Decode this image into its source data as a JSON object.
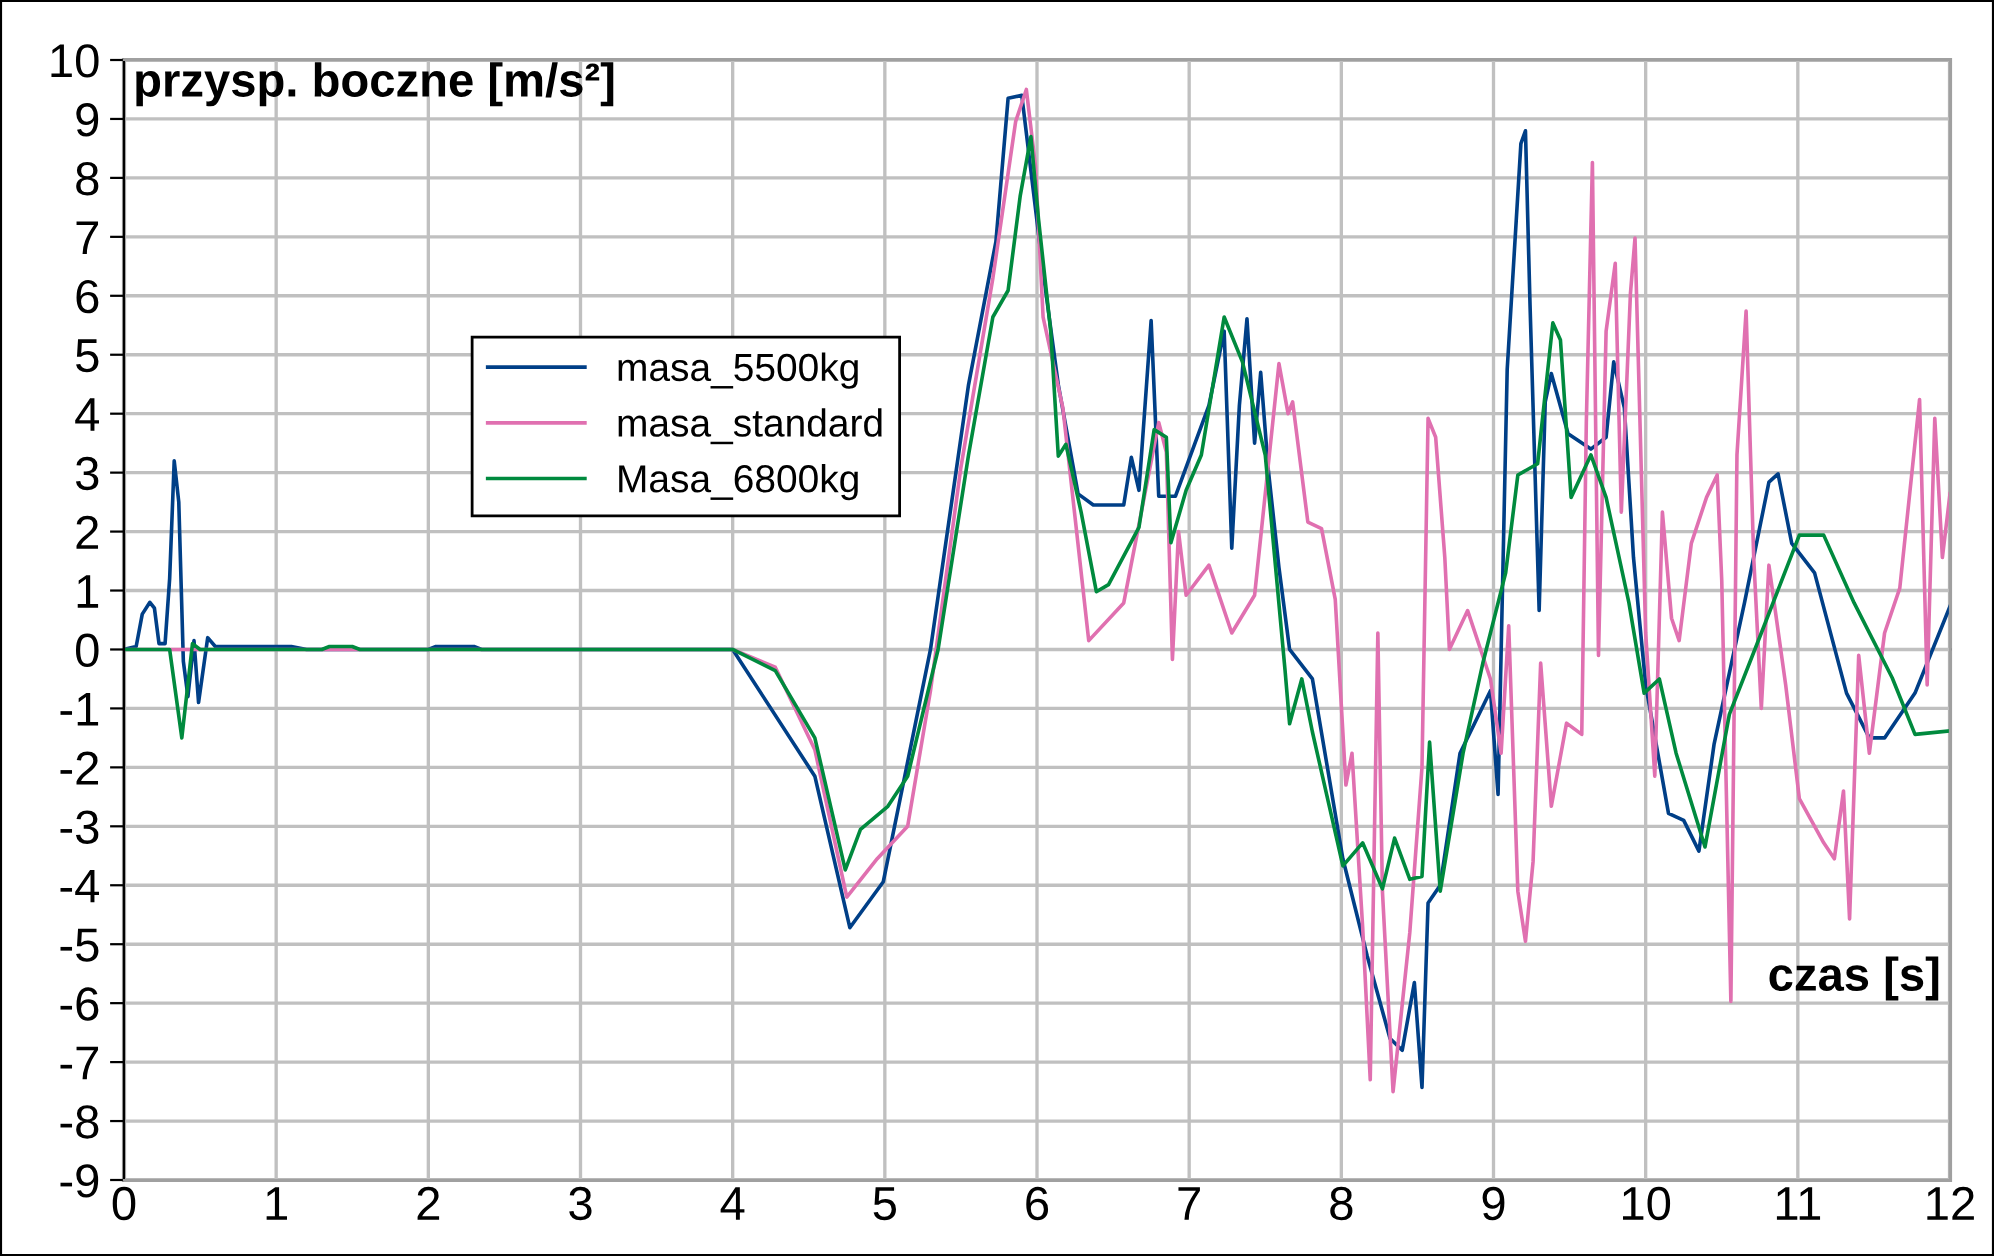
{
  "chart_data": {
    "type": "line",
    "xlabel": "czas [s]",
    "ylabel": "przysp. boczne [m/s²]",
    "xlim": [
      0,
      12
    ],
    "xticks": [
      0,
      1,
      2,
      3,
      4,
      5,
      6,
      7,
      8,
      9,
      10,
      11,
      12
    ],
    "ylim": [
      -9,
      10
    ],
    "yticks": [
      -9,
      -8,
      -7,
      -6,
      -5,
      -4,
      -3,
      -2,
      -1,
      0,
      1,
      2,
      3,
      4,
      5,
      6,
      7,
      8,
      9,
      10
    ],
    "grid": true,
    "legend": "top left",
    "marker": "none",
    "line_style": "solid",
    "series": [
      {
        "name": "masa_5500kg",
        "color": "#003f87",
        "x": [
          0,
          0.08,
          0.12,
          0.17,
          0.2,
          0.23,
          0.27,
          0.3,
          0.33,
          0.36,
          0.39,
          0.42,
          0.46,
          0.49,
          0.55,
          0.6,
          1.1,
          1.2,
          2.0,
          2.05,
          2.3,
          2.35,
          4.0,
          4.54,
          4.77,
          4.99,
          5.3,
          5.55,
          5.73,
          5.81,
          5.9,
          6.04,
          6.14,
          6.27,
          6.37,
          6.57,
          6.62,
          6.67,
          6.75,
          6.8,
          6.91,
          7.13,
          7.19,
          7.23,
          7.28,
          7.33,
          7.38,
          7.43,
          7.47,
          7.52,
          7.59,
          7.66,
          7.81,
          8.01,
          8.17,
          8.32,
          8.4,
          8.48,
          8.53,
          8.57,
          8.65,
          8.78,
          8.98,
          9.03,
          9.09,
          9.18,
          9.21,
          9.24,
          9.3,
          9.34,
          9.38,
          9.49,
          9.64,
          9.74,
          9.79,
          9.86,
          9.92,
          10.0,
          10.15,
          10.25,
          10.35,
          10.45,
          10.65,
          10.81,
          10.87,
          10.96,
          11.11,
          11.32,
          11.47,
          11.57,
          11.77,
          12.0
        ],
        "values": [
          0,
          0.05,
          0.6,
          0.8,
          0.7,
          0.1,
          0.1,
          1.2,
          3.2,
          2.5,
          -0.2,
          -0.8,
          0.15,
          -0.9,
          0.2,
          0.05,
          0.05,
          0,
          0,
          0.05,
          0.05,
          0,
          0,
          -2.15,
          -4.72,
          -3.94,
          0,
          4.49,
          6.92,
          9.35,
          9.4,
          6.41,
          4.49,
          2.64,
          2.45,
          2.45,
          3.26,
          2.7,
          5.58,
          2.6,
          2.6,
          4.14,
          4.9,
          5.4,
          1.72,
          4.14,
          5.61,
          3.5,
          4.7,
          3.05,
          1.39,
          0.0,
          -0.5,
          -3.55,
          -5.2,
          -6.6,
          -6.8,
          -5.65,
          -7.43,
          -4.3,
          -4.0,
          -1.76,
          -0.7,
          -2.46,
          4.75,
          8.58,
          8.8,
          5.85,
          0.66,
          4.2,
          4.68,
          3.66,
          3.4,
          3.6,
          4.88,
          4.1,
          1.56,
          -0.6,
          -2.78,
          -2.9,
          -3.42,
          -1.6,
          0.8,
          2.84,
          2.98,
          1.8,
          1.3,
          -0.74,
          -1.5,
          -1.5,
          -0.74,
          0.73
        ]
      },
      {
        "name": "masa_standard",
        "color": "#e070b0",
        "x": [
          0,
          4.0,
          4.28,
          4.54,
          4.75,
          4.95,
          5.15,
          5.3,
          5.5,
          5.71,
          5.86,
          5.93,
          5.99,
          6.04,
          6.17,
          6.34,
          6.57,
          6.8,
          6.85,
          6.89,
          6.93,
          6.98,
          7.13,
          7.28,
          7.43,
          7.59,
          7.65,
          7.68,
          7.78,
          7.87,
          7.96,
          8.03,
          8.07,
          8.14,
          8.19,
          8.24,
          8.27,
          8.34,
          8.45,
          8.53,
          8.57,
          8.62,
          8.68,
          8.71,
          8.83,
          8.98,
          9.05,
          9.1,
          9.16,
          9.21,
          9.26,
          9.31,
          9.38,
          9.48,
          9.58,
          9.61,
          9.65,
          9.69,
          9.74,
          9.8,
          9.84,
          9.9,
          9.93,
          10.0,
          10.06,
          10.11,
          10.17,
          10.22,
          10.3,
          10.4,
          10.47,
          10.5,
          10.56,
          10.6,
          10.66,
          10.71,
          10.76,
          10.81,
          10.92,
          11.01,
          11.17,
          11.24,
          11.3,
          11.34,
          11.4,
          11.47,
          11.57,
          11.67,
          11.8,
          11.85,
          11.9,
          11.95,
          12.0
        ],
        "values": [
          0,
          0,
          -0.3,
          -1.7,
          -4.2,
          -3.55,
          -3.0,
          -0.7,
          3.09,
          6.3,
          8.96,
          9.5,
          8.2,
          5.64,
          4.1,
          0.15,
          0.79,
          3.85,
          3.35,
          -0.17,
          2.0,
          0.92,
          1.43,
          0.28,
          0.92,
          4.85,
          4.0,
          4.2,
          2.16,
          2.05,
          0.85,
          -2.3,
          -1.76,
          -4.7,
          -7.3,
          0.28,
          -4.1,
          -7.5,
          -4.8,
          -2.0,
          3.92,
          3.6,
          1.56,
          0.0,
          0.66,
          -0.5,
          -1.76,
          0.4,
          -4.1,
          -4.95,
          -3.6,
          -0.23,
          -2.66,
          -1.25,
          -1.44,
          3.85,
          8.26,
          -0.1,
          5.4,
          6.55,
          2.33,
          6.04,
          6.98,
          0.28,
          -2.15,
          2.33,
          0.53,
          0.15,
          1.8,
          2.58,
          2.96,
          1.17,
          -5.97,
          3.3,
          5.74,
          1.56,
          -1.0,
          1.43,
          -0.6,
          -2.53,
          -3.28,
          -3.55,
          -2.4,
          -4.57,
          -0.1,
          -1.76,
          0.28,
          1.04,
          4.24,
          -0.6,
          3.92,
          1.56,
          2.64
        ]
      },
      {
        "name": "Masa_6800kg",
        "color": "#008a3e",
        "x": [
          0,
          0.3,
          0.38,
          0.45,
          0.5,
          1.3,
          1.35,
          1.5,
          1.55,
          4.0,
          4.28,
          4.54,
          4.74,
          4.84,
          5.02,
          5.15,
          5.35,
          5.55,
          5.71,
          5.81,
          5.89,
          5.96,
          6.01,
          6.09,
          6.14,
          6.19,
          6.29,
          6.39,
          6.47,
          6.67,
          6.77,
          6.85,
          6.88,
          6.98,
          7.08,
          7.23,
          7.35,
          7.5,
          7.63,
          7.66,
          7.74,
          7.81,
          8.01,
          8.14,
          8.27,
          8.35,
          8.45,
          8.53,
          8.58,
          8.65,
          8.8,
          8.93,
          9.08,
          9.16,
          9.29,
          9.39,
          9.44,
          9.51,
          9.64,
          9.74,
          9.89,
          9.99,
          10.09,
          10.2,
          10.39,
          10.55,
          10.76,
          11.01,
          11.17,
          11.37,
          11.62,
          11.77,
          12.0
        ],
        "values": [
          0,
          0,
          -1.5,
          0.1,
          0,
          0,
          0.05,
          0.05,
          0,
          0,
          -0.36,
          -1.5,
          -3.74,
          -3.05,
          -2.66,
          -2.15,
          0,
          3.3,
          5.64,
          6.09,
          7.7,
          8.7,
          7.3,
          5.4,
          3.28,
          3.48,
          2.33,
          0.98,
          1.1,
          2.07,
          3.73,
          3.6,
          1.81,
          2.7,
          3.3,
          5.64,
          4.88,
          3.3,
          -0.35,
          -1.26,
          -0.5,
          -1.4,
          -3.67,
          -3.28,
          -4.06,
          -3.2,
          -3.9,
          -3.85,
          -1.57,
          -4.1,
          -1.76,
          -0.23,
          1.3,
          2.96,
          3.15,
          5.54,
          5.25,
          2.58,
          3.3,
          2.58,
          0.79,
          -0.74,
          -0.5,
          -1.76,
          -3.35,
          -1.1,
          0.28,
          1.94,
          1.94,
          0.79,
          -0.48,
          -1.44,
          -1.38
        ]
      }
    ]
  }
}
